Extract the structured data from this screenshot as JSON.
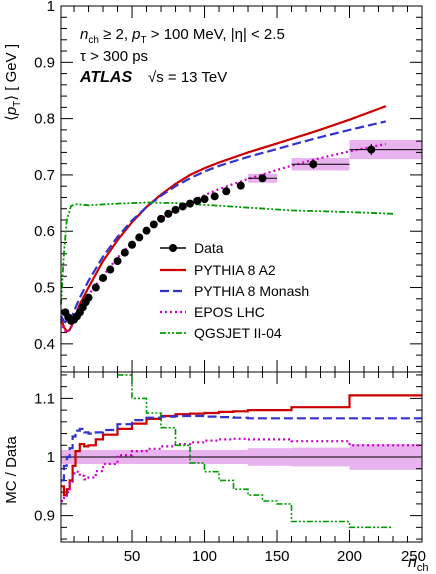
{
  "chart_data": [
    {
      "type": "line",
      "panel": "main",
      "ylabel_parts": {
        "open": "⟨",
        "p": "p",
        "sub": "T",
        "close": "⟩ [ GeV ]"
      },
      "ylim": [
        0.35,
        1.0
      ],
      "yticks": [
        0.4,
        0.5,
        0.6,
        0.7,
        0.8,
        0.9,
        1.0
      ],
      "ytick_labels": [
        "0.4",
        "0.5",
        "0.6",
        "0.7",
        "0.8",
        "0.9",
        "1"
      ],
      "xlim": [
        1,
        250
      ],
      "annotations": {
        "line1_nch_n": "n",
        "line1_nch_sub": "ch",
        "line1_mid": " ≥ 2,  ",
        "line1_pt_p": "p",
        "line1_pt_sub": "T",
        "line1_rest": " > 100 MeV,  |η| < 2.5",
        "line2": "τ > 300 ps",
        "atlas": "ATLAS",
        "energy_sqrt": "√s",
        "energy_rest": " = 13 TeV"
      },
      "legend_position": "center-right",
      "data_series": {
        "name": "Data",
        "x": [
          4,
          6,
          8,
          10,
          12,
          14,
          16,
          18,
          20,
          25,
          30,
          35,
          40,
          45,
          50,
          55,
          60,
          65,
          70,
          75,
          80,
          85,
          90,
          95,
          100,
          107,
          115,
          125,
          140,
          175,
          215
        ],
        "y": [
          0.456,
          0.447,
          0.441,
          0.443,
          0.449,
          0.456,
          0.465,
          0.474,
          0.482,
          0.5,
          0.517,
          0.532,
          0.547,
          0.562,
          0.576,
          0.589,
          0.601,
          0.612,
          0.622,
          0.631,
          0.638,
          0.644,
          0.649,
          0.654,
          0.657,
          0.662,
          0.671,
          0.681,
          0.694,
          0.719,
          0.745
        ],
        "bin_lo": [
          null,
          null,
          null,
          null,
          null,
          null,
          null,
          null,
          null,
          null,
          null,
          null,
          null,
          null,
          null,
          null,
          null,
          null,
          null,
          null,
          null,
          null,
          null,
          null,
          null,
          null,
          null,
          null,
          130,
          160,
          200
        ],
        "bin_hi": [
          null,
          null,
          null,
          null,
          null,
          null,
          null,
          null,
          null,
          null,
          null,
          null,
          null,
          null,
          null,
          null,
          null,
          null,
          null,
          null,
          null,
          null,
          null,
          null,
          null,
          null,
          null,
          null,
          150,
          200,
          250
        ],
        "yerr": [
          0,
          0,
          0,
          0,
          0,
          0,
          0,
          0,
          0,
          0,
          0,
          0,
          0,
          0,
          0,
          0,
          0,
          0,
          0,
          0,
          0,
          0,
          0,
          0,
          0,
          0,
          0,
          0,
          0.006,
          0.008,
          0.01
        ],
        "band": [
          [
            130,
            150,
            0.686,
            0.702
          ],
          [
            160,
            200,
            0.708,
            0.73
          ],
          [
            200,
            250,
            0.728,
            0.762
          ]
        ]
      },
      "mc_series": [
        {
          "name": "PYTHIA 8 A2",
          "color": "#cc0000",
          "style": "solid",
          "x": [
            1,
            3,
            5,
            7,
            9,
            11,
            14,
            20,
            30,
            40,
            50,
            60,
            70,
            80,
            90,
            100,
            110,
            130,
            150,
            175,
            200,
            225
          ],
          "y": [
            0.445,
            0.43,
            0.422,
            0.425,
            0.436,
            0.45,
            0.47,
            0.5,
            0.547,
            0.584,
            0.616,
            0.643,
            0.665,
            0.684,
            0.7,
            0.712,
            0.722,
            0.74,
            0.756,
            0.776,
            0.798,
            0.822
          ]
        },
        {
          "name": "PYTHIA 8 Monash",
          "color": "#3333cc",
          "style": "dashed",
          "x": [
            1,
            3,
            5,
            7,
            9,
            11,
            14,
            20,
            30,
            40,
            50,
            60,
            70,
            80,
            90,
            100,
            110,
            130,
            150,
            175,
            200,
            225
          ],
          "y": [
            0.45,
            0.44,
            0.437,
            0.441,
            0.451,
            0.464,
            0.482,
            0.512,
            0.555,
            0.59,
            0.619,
            0.643,
            0.663,
            0.68,
            0.694,
            0.706,
            0.716,
            0.732,
            0.746,
            0.764,
            0.78,
            0.795
          ]
        },
        {
          "name": "EPOS LHC",
          "color": "#cc00cc",
          "style": "dotted",
          "x": [
            1,
            3,
            5,
            7,
            9,
            11,
            14,
            20,
            30,
            40,
            50,
            60,
            70,
            80,
            90,
            100,
            110,
            130,
            150,
            175,
            200,
            225
          ],
          "y": [
            0.44,
            0.425,
            0.42,
            0.425,
            0.434,
            0.446,
            0.462,
            0.487,
            0.521,
            0.553,
            0.58,
            0.603,
            0.622,
            0.638,
            0.652,
            0.664,
            0.675,
            0.693,
            0.709,
            0.727,
            0.742,
            0.755
          ]
        },
        {
          "name": "QGSJET II-04",
          "color": "#009900",
          "style": "dashdot",
          "x": [
            1,
            3,
            5,
            8,
            12,
            20,
            40,
            60,
            80,
            100,
            130,
            160,
            200,
            230
          ],
          "y": [
            0.47,
            0.56,
            0.62,
            0.645,
            0.648,
            0.646,
            0.649,
            0.651,
            0.65,
            0.647,
            0.642,
            0.637,
            0.634,
            0.631
          ]
        }
      ]
    },
    {
      "type": "line",
      "panel": "ratio",
      "ylabel": "MC / Data",
      "xlabel_n": "n",
      "xlabel_sub": "ch",
      "xlim": [
        1,
        250
      ],
      "ylim": [
        0.855,
        1.145
      ],
      "yticks": [
        0.9,
        1.0,
        1.1
      ],
      "ytick_labels": [
        "0.9",
        "1",
        "1.1"
      ],
      "xticks": [
        50,
        100,
        150,
        200,
        250
      ],
      "xtick_labels": [
        "50",
        "100",
        "150",
        "200",
        "250"
      ],
      "data_band": [
        [
          1,
          130,
          0.988,
          1.012
        ],
        [
          130,
          160,
          0.985,
          1.015
        ],
        [
          160,
          200,
          0.984,
          1.016
        ],
        [
          200,
          250,
          0.978,
          1.022
        ]
      ],
      "series": [
        {
          "name": "PYTHIA 8 A2",
          "color": "#cc0000",
          "style": "solid",
          "step": true,
          "x": [
            1,
            3,
            5,
            7,
            9,
            11,
            14,
            17,
            20,
            25,
            30,
            40,
            50,
            60,
            70,
            80,
            90,
            100,
            110,
            120,
            130,
            160,
            200,
            250
          ],
          "y": [
            0.95,
            0.935,
            0.945,
            0.96,
            0.985,
            1.01,
            1.022,
            1.018,
            1.02,
            1.03,
            1.038,
            1.048,
            1.057,
            1.065,
            1.07,
            1.073,
            1.074,
            1.075,
            1.077,
            1.078,
            1.08,
            1.085,
            1.105,
            1.105
          ]
        },
        {
          "name": "PYTHIA 8 Monash",
          "color": "#3333cc",
          "style": "dashed",
          "step": true,
          "x": [
            1,
            3,
            5,
            7,
            9,
            11,
            14,
            17,
            20,
            25,
            30,
            40,
            50,
            60,
            70,
            80,
            90,
            100,
            110,
            120,
            130,
            160,
            200,
            250
          ],
          "y": [
            0.96,
            0.985,
            1.0,
            1.015,
            1.035,
            1.045,
            1.048,
            1.042,
            1.04,
            1.042,
            1.046,
            1.056,
            1.063,
            1.067,
            1.069,
            1.07,
            1.07,
            1.069,
            1.068,
            1.067,
            1.066,
            1.066,
            1.066,
            1.066
          ]
        },
        {
          "name": "EPOS LHC",
          "color": "#cc00cc",
          "style": "dotted",
          "step": true,
          "x": [
            1,
            3,
            5,
            7,
            9,
            11,
            14,
            17,
            20,
            25,
            30,
            40,
            50,
            60,
            70,
            80,
            90,
            100,
            110,
            120,
            130,
            160,
            200,
            250
          ],
          "y": [
            0.925,
            0.93,
            0.94,
            0.955,
            0.972,
            0.975,
            0.968,
            0.962,
            0.965,
            0.976,
            0.988,
            1.003,
            1.01,
            1.014,
            1.018,
            1.022,
            1.025,
            1.028,
            1.03,
            1.031,
            1.03,
            1.027,
            1.02,
            1.02
          ]
        },
        {
          "name": "QGSJET II-04",
          "color": "#009900",
          "style": "dashdot",
          "step": true,
          "x": [
            40,
            50,
            60,
            70,
            80,
            90,
            100,
            110,
            120,
            130,
            140,
            150,
            160,
            200,
            230
          ],
          "y": [
            1.14,
            1.1,
            1.075,
            1.05,
            1.02,
            0.99,
            0.975,
            0.96,
            0.945,
            0.935,
            0.925,
            0.92,
            0.89,
            0.88,
            0.88
          ]
        }
      ]
    }
  ]
}
